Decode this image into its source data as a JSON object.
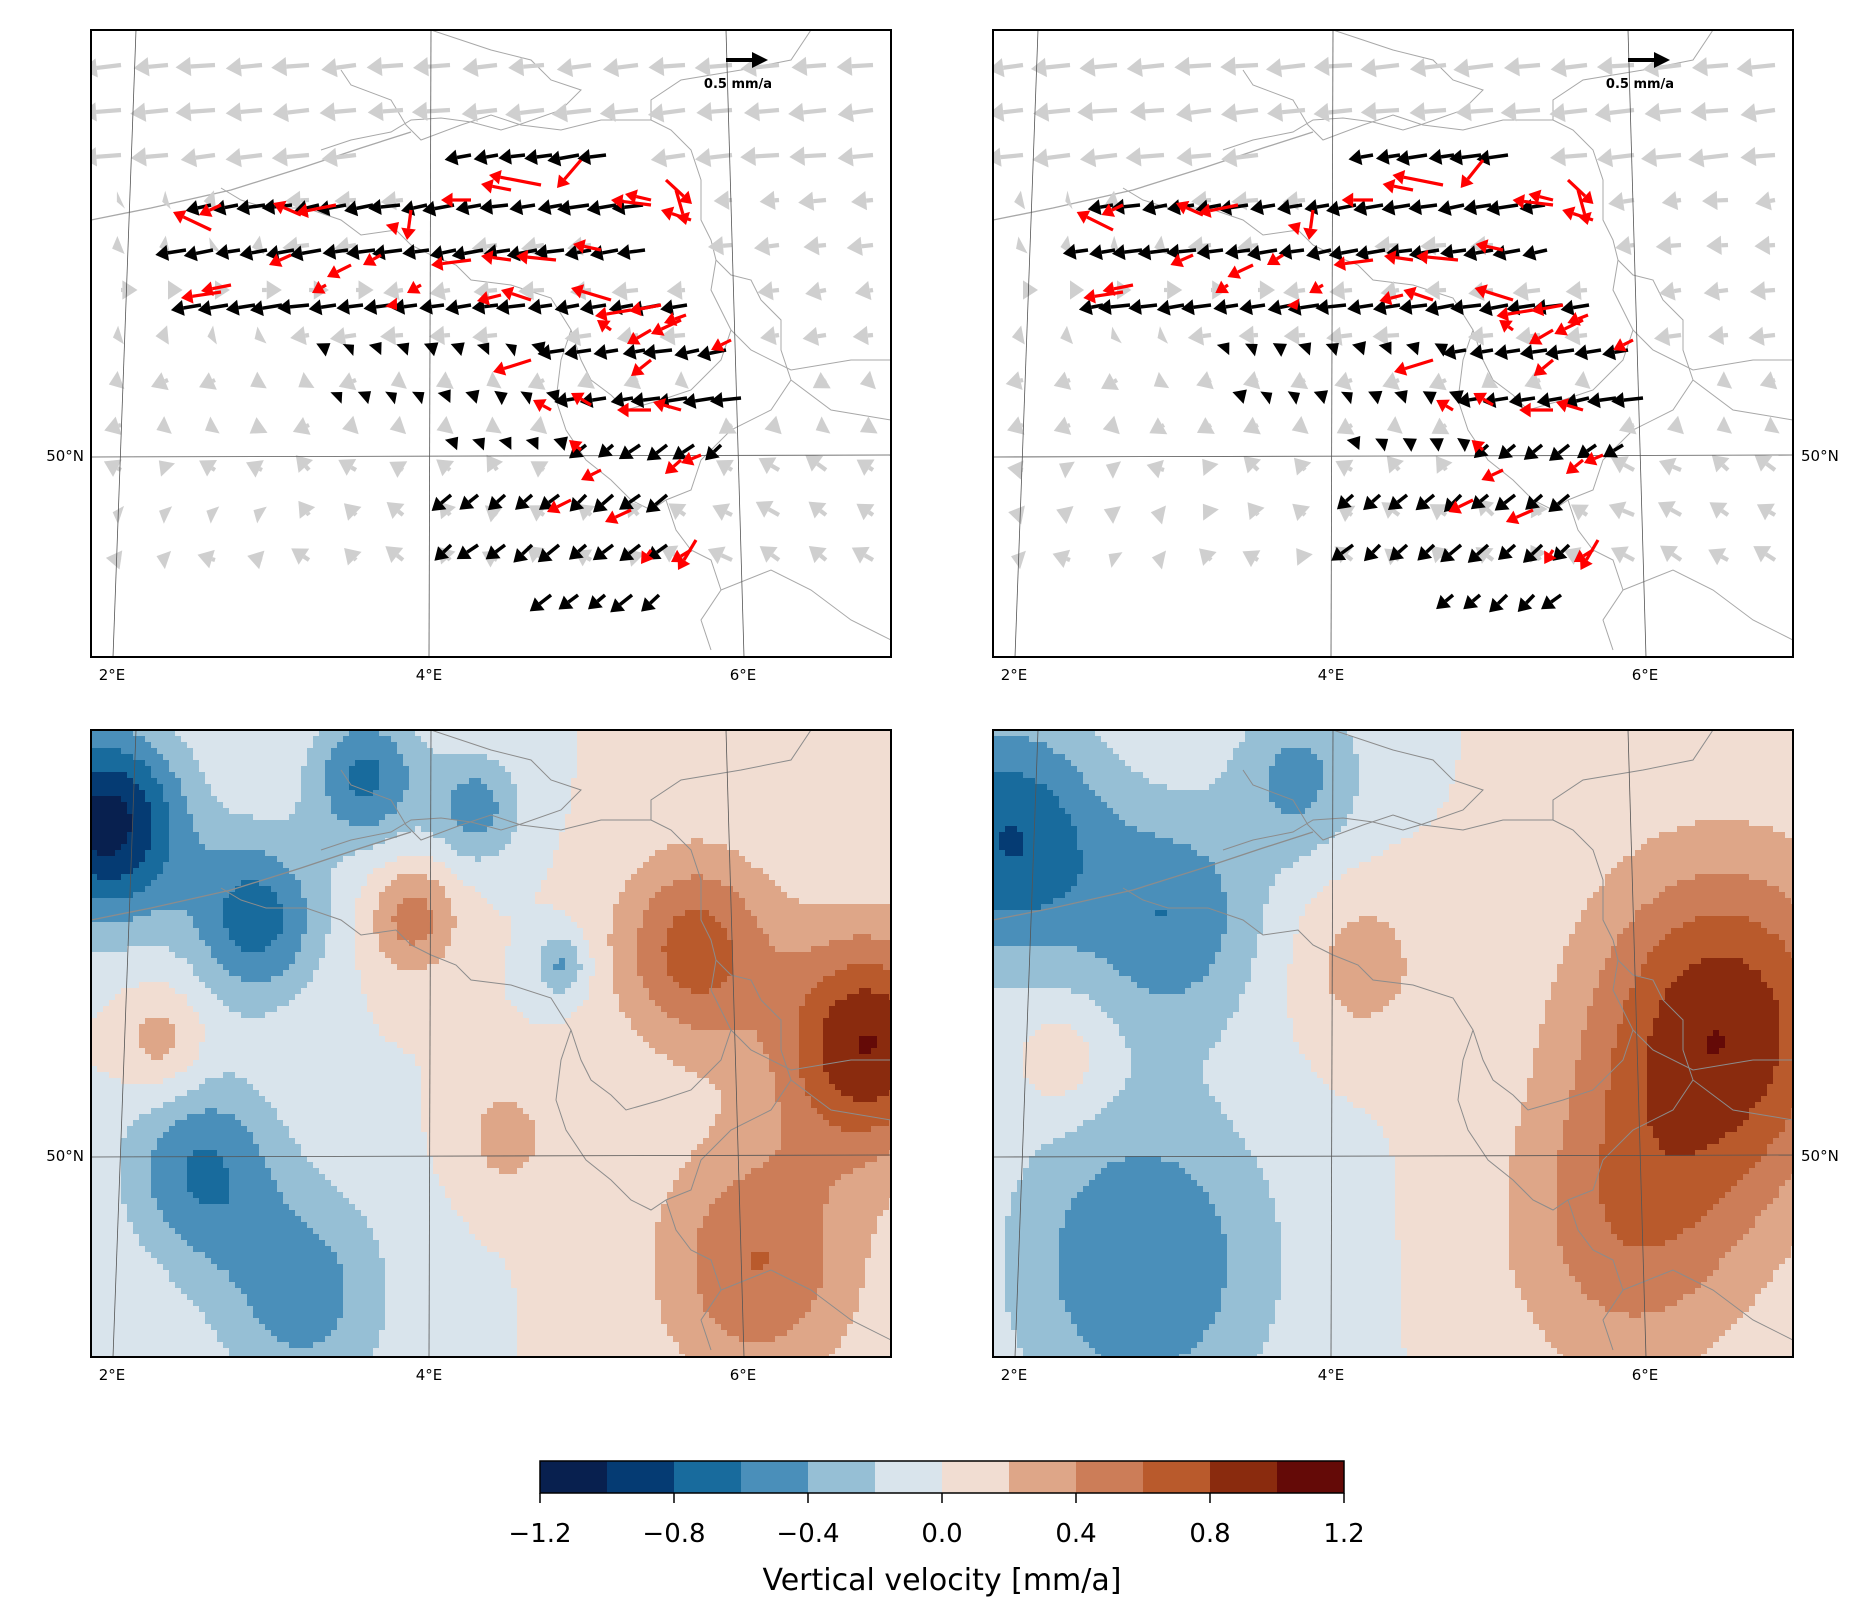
{
  "chart_data": [
    {
      "type": "quiver",
      "panel": "top-left",
      "x_ticks": [
        "2°E",
        "4°E",
        "6°E"
      ],
      "y_ticks": [
        "50°N"
      ],
      "y_tick_side": "left",
      "xlim": [
        1.85,
        6.95
      ],
      "ylim": [
        49.35,
        51.35
      ],
      "reference_arrow_label": "0.5 mm/a",
      "reference_arrow_value": 0.5,
      "colors": {
        "background_field": "#cfcfcf",
        "observed": "#000000",
        "residual": "#ff0000"
      }
    },
    {
      "type": "quiver",
      "panel": "top-right",
      "x_ticks": [
        "2°E",
        "4°E",
        "6°E"
      ],
      "y_ticks": [
        "50°N"
      ],
      "y_tick_side": "right",
      "xlim": [
        1.85,
        6.95
      ],
      "ylim": [
        49.35,
        51.35
      ],
      "reference_arrow_label": "0.5 mm/a",
      "reference_arrow_value": 0.5,
      "colors": {
        "background_field": "#cfcfcf",
        "observed": "#000000",
        "residual": "#ff0000"
      }
    },
    {
      "type": "contourf",
      "panel": "bottom-left",
      "x_ticks": [
        "2°E",
        "4°E",
        "6°E"
      ],
      "y_ticks": [
        "50°N"
      ],
      "y_tick_side": "left",
      "xlim": [
        1.85,
        6.95
      ],
      "ylim": [
        49.35,
        51.35
      ],
      "sources": [
        {
          "x": 1.95,
          "y": 51.05,
          "amp": -1.1,
          "sig": 0.35
        },
        {
          "x": 2.9,
          "y": 50.75,
          "amp": -0.7,
          "sig": 0.3
        },
        {
          "x": 3.6,
          "y": 51.2,
          "amp": -0.65,
          "sig": 0.25
        },
        {
          "x": 4.3,
          "y": 51.1,
          "amp": -0.5,
          "sig": 0.2
        },
        {
          "x": 2.55,
          "y": 49.95,
          "amp": -0.6,
          "sig": 0.35
        },
        {
          "x": 3.2,
          "y": 49.55,
          "amp": -0.5,
          "sig": 0.4
        },
        {
          "x": 2.3,
          "y": 50.35,
          "amp": 0.35,
          "sig": 0.2
        },
        {
          "x": 3.9,
          "y": 50.75,
          "amp": 0.5,
          "sig": 0.2
        },
        {
          "x": 4.5,
          "y": 50.05,
          "amp": 0.3,
          "sig": 0.2
        },
        {
          "x": 5.7,
          "y": 50.65,
          "amp": 0.7,
          "sig": 0.35
        },
        {
          "x": 6.8,
          "y": 50.35,
          "amp": 1.0,
          "sig": 0.4
        },
        {
          "x": 6.1,
          "y": 49.65,
          "amp": 0.6,
          "sig": 0.45
        },
        {
          "x": 4.85,
          "y": 50.6,
          "amp": -0.45,
          "sig": 0.12
        }
      ]
    },
    {
      "type": "contourf",
      "panel": "bottom-right",
      "x_ticks": [
        "2°E",
        "4°E",
        "6°E"
      ],
      "y_ticks": [
        "50°N"
      ],
      "y_tick_side": "right",
      "xlim": [
        1.85,
        6.95
      ],
      "ylim": [
        49.35,
        51.35
      ],
      "sources": [
        {
          "x": 1.95,
          "y": 51.0,
          "amp": -0.8,
          "sig": 0.45
        },
        {
          "x": 3.0,
          "y": 50.75,
          "amp": -0.55,
          "sig": 0.4
        },
        {
          "x": 3.8,
          "y": 51.2,
          "amp": -0.45,
          "sig": 0.3
        },
        {
          "x": 2.8,
          "y": 49.65,
          "amp": -0.6,
          "sig": 0.6
        },
        {
          "x": 2.3,
          "y": 50.3,
          "amp": 0.25,
          "sig": 0.2
        },
        {
          "x": 4.2,
          "y": 50.6,
          "amp": 0.3,
          "sig": 0.3
        },
        {
          "x": 6.5,
          "y": 50.4,
          "amp": 0.95,
          "sig": 0.6
        },
        {
          "x": 5.9,
          "y": 49.75,
          "amp": 0.5,
          "sig": 0.55
        }
      ]
    }
  ],
  "colorbar": {
    "label": "Vertical velocity [mm/a]",
    "levels": [
      -1.2,
      -1.0,
      -0.8,
      -0.6,
      -0.4,
      -0.2,
      0.0,
      0.2,
      0.4,
      0.6,
      0.8,
      1.0,
      1.2
    ],
    "tick_labels": [
      "−1.2",
      "−0.8",
      "−0.4",
      "0.0",
      "0.4",
      "0.8",
      "1.2"
    ],
    "colors": [
      "#08204f",
      "#053b73",
      "#186b9d",
      "#4a8fba",
      "#96bfd5",
      "#d9e4ec",
      "#f1ddd2",
      "#dea688",
      "#cc7d58",
      "#b95a2c",
      "#8a2b0e",
      "#640a07"
    ]
  }
}
